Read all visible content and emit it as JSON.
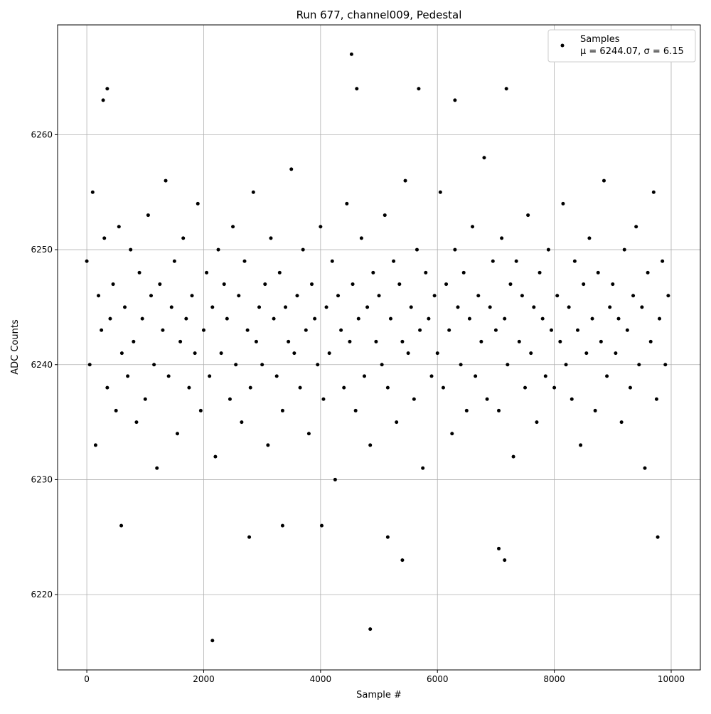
{
  "chart_data": {
    "type": "scatter",
    "title": "Run 677, channel009, Pedestal",
    "xlabel": "Sample #",
    "ylabel": "ADC Counts",
    "xlim": [
      -500,
      10499
    ],
    "ylim": [
      6213.45,
      6269.55
    ],
    "xticks": [
      0,
      2000,
      4000,
      6000,
      8000,
      10000
    ],
    "yticks": [
      6220,
      6230,
      6240,
      6250,
      6260
    ],
    "grid": true,
    "legend": "upper right",
    "series": [
      {
        "name": "Samples",
        "stats": "μ = 6244.07, σ = 6.15",
        "color": "#000000",
        "x": [
          0,
          50,
          100,
          150,
          200,
          250,
          300,
          350,
          400,
          450,
          500,
          550,
          600,
          650,
          700,
          750,
          800,
          850,
          900,
          950,
          1000,
          1050,
          1100,
          1150,
          1200,
          1250,
          1300,
          1350,
          1400,
          1450,
          1500,
          1550,
          1600,
          1650,
          1700,
          1750,
          1800,
          1850,
          1900,
          1950,
          2000,
          2050,
          2100,
          2150,
          2200,
          2250,
          2300,
          2350,
          2400,
          2450,
          2500,
          2550,
          2600,
          2650,
          2700,
          2750,
          2800,
          2850,
          2900,
          2950,
          3000,
          3050,
          3100,
          3150,
          3200,
          3250,
          3300,
          3350,
          3400,
          3450,
          3500,
          3550,
          3600,
          3650,
          3700,
          3750,
          3800,
          3850,
          3900,
          3950,
          4000,
          4050,
          4100,
          4150,
          4200,
          4250,
          4300,
          4350,
          4400,
          4450,
          4500,
          4550,
          4600,
          4650,
          4700,
          4750,
          4800,
          4850,
          4900,
          4950,
          5000,
          5050,
          5100,
          5150,
          5200,
          5250,
          5300,
          5350,
          5400,
          5450,
          5500,
          5550,
          5600,
          5650,
          5700,
          5750,
          5800,
          5850,
          5900,
          5950,
          6000,
          6050,
          6100,
          6150,
          6200,
          6250,
          6300,
          6350,
          6400,
          6450,
          6500,
          6550,
          6600,
          6650,
          6700,
          6750,
          6800,
          6850,
          6900,
          6950,
          7000,
          7050,
          7100,
          7150,
          7200,
          7250,
          7300,
          7350,
          7400,
          7450,
          7500,
          7550,
          7600,
          7650,
          7700,
          7750,
          7800,
          7850,
          7900,
          7950,
          8000,
          8050,
          8100,
          8150,
          8200,
          8250,
          8300,
          8350,
          8400,
          8450,
          8500,
          8550,
          8600,
          8650,
          8700,
          8750,
          8800,
          8850,
          8900,
          8950,
          9000,
          9050,
          9100,
          9150,
          9200,
          9250,
          9300,
          9350,
          9400,
          9450,
          9500,
          9550,
          9600,
          9650,
          9700,
          9750,
          9800,
          9850,
          9900,
          9950,
          2150,
          4850,
          4530,
          5400,
          7150,
          7050,
          350,
          4620,
          5680,
          7180,
          590,
          4020,
          3350,
          2780,
          6300,
          5150,
          9770,
          280
        ],
        "values": [
          6249,
          6240,
          6255,
          6233,
          6246,
          6243,
          6251,
          6238,
          6244,
          6247,
          6236,
          6252,
          6241,
          6245,
          6239,
          6250,
          6242,
          6235,
          6248,
          6244,
          6237,
          6253,
          6246,
          6240,
          6231,
          6247,
          6243,
          6256,
          6239,
          6245,
          6249,
          6234,
          6242,
          6251,
          6244,
          6238,
          6246,
          6241,
          6254,
          6236,
          6243,
          6248,
          6239,
          6245,
          6232,
          6250,
          6241,
          6247,
          6244,
          6237,
          6252,
          6240,
          6246,
          6235,
          6249,
          6243,
          6238,
          6255,
          6242,
          6245,
          6240,
          6247,
          6233,
          6251,
          6244,
          6239,
          6248,
          6236,
          6245,
          6242,
          6257,
          6241,
          6246,
          6238,
          6250,
          6243,
          6234,
          6247,
          6244,
          6240,
          6252,
          6237,
          6245,
          6241,
          6249,
          6230,
          6246,
          6243,
          6238,
          6254,
          6242,
          6247,
          6236,
          6244,
          6251,
          6239,
          6245,
          6233,
          6248,
          6242,
          6246,
          6240,
          6253,
          6238,
          6244,
          6249,
          6235,
          6247,
          6242,
          6256,
          6241,
          6245,
          6237,
          6250,
          6243,
          6231,
          6248,
          6244,
          6239,
          6246,
          6241,
          6255,
          6238,
          6247,
          6243,
          6234,
          6250,
          6245,
          6240,
          6248,
          6236,
          6244,
          6252,
          6239,
          6246,
          6242,
          6258,
          6237,
          6245,
          6249,
          6243,
          6236,
          6251,
          6244,
          6240,
          6247,
          6232,
          6249,
          6242,
          6246,
          6238,
          6253,
          6241,
          6245,
          6235,
          6248,
          6244,
          6239,
          6250,
          6243,
          6238,
          6246,
          6242,
          6254,
          6240,
          6245,
          6237,
          6249,
          6243,
          6233,
          6247,
          6241,
          6251,
          6244,
          6236,
          6248,
          6242,
          6256,
          6239,
          6245,
          6247,
          6241,
          6244,
          6235,
          6250,
          6243,
          6238,
          6246,
          6252,
          6240,
          6245,
          6231,
          6248,
          6242,
          6255,
          6237,
          6244,
          6249,
          6240,
          6246,
          6216,
          6217,
          6267,
          6223,
          6223,
          6224,
          6264,
          6264,
          6264,
          6264,
          6226,
          6226,
          6226,
          6225,
          6263,
          6225,
          6225,
          6263
        ]
      }
    ]
  }
}
